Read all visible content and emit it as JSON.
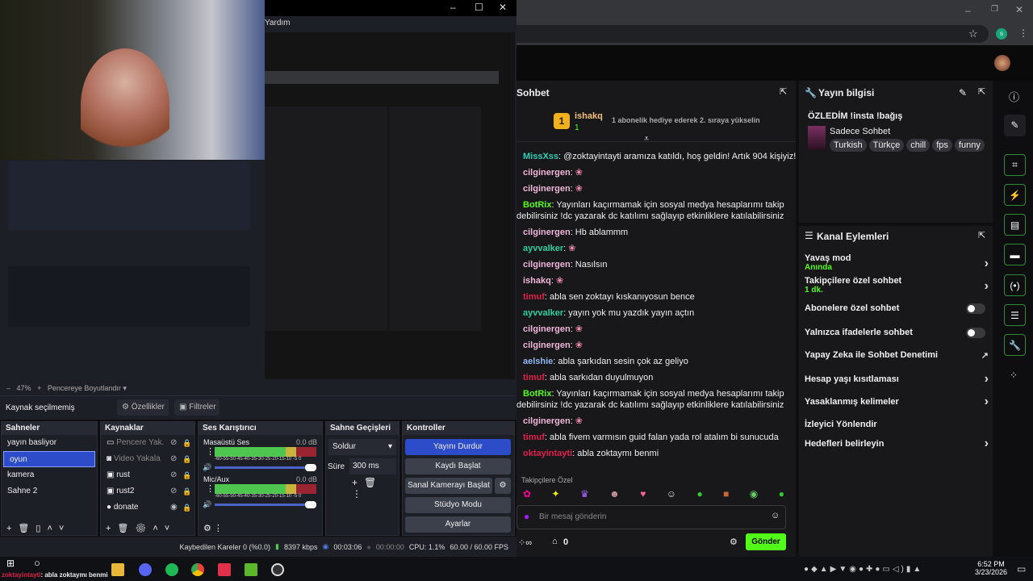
{
  "browser": {
    "profile_initial": "s"
  },
  "chat": {
    "title": "Sohbet",
    "leader": {
      "rank": "1",
      "name": "ishakq",
      "count": "1",
      "gift_hint": "1 abonelik hediye ederek 2. sıraya yükselin"
    },
    "messages": [
      {
        "user": "MissXss",
        "color": "#2ecfb5",
        "text": ": @zoktayintayti aramıza katıldı, hoş geldin! Artık 904 kişiyiz!"
      },
      {
        "user": "cilginergen",
        "color": "#f0b6d8",
        "text": ":"
      },
      {
        "user": "cilginergen",
        "color": "#f0b6d8",
        "text": ":"
      },
      {
        "user": "BotRix",
        "color": "#53fc18",
        "text": ": Yayınları kaçırmamak için sosyal medya hesaplarımı takip",
        "cont": "debilirsiniz !dc yazarak dc katılımı sağlayıp etkinliklere katılabilirsiniz"
      },
      {
        "user": "cilginergen",
        "color": "#f0b6d8",
        "text": ": Hb ablammm"
      },
      {
        "user": "ayvvalker",
        "color": "#2ecf9a",
        "text": ":"
      },
      {
        "user": "cilginergen",
        "color": "#f0b6d8",
        "text": ": Nasılsın"
      },
      {
        "user": "ishakq",
        "color": "#f0b6d8",
        "text": ":"
      },
      {
        "user": "timuf",
        "color": "#e0204a",
        "text": ": abla sen zoktayı kıskanıyosun bence"
      },
      {
        "user": "ayvvalker",
        "color": "#2ecf9a",
        "text": ": yayın yok mu yazdık yayın açtın"
      },
      {
        "user": "cilginergen",
        "color": "#f0b6d8",
        "text": ":"
      },
      {
        "user": "cilginergen",
        "color": "#f0b6d8",
        "text": ":"
      },
      {
        "user": "aelshie",
        "color": "#8fb7f0",
        "text": ": abla şarkıdan sesin çok az geliyo"
      },
      {
        "user": "timuf",
        "color": "#e0204a",
        "text": ": abla sarkıdan duyulmuyon"
      },
      {
        "user": "BotRix",
        "color": "#53fc18",
        "text": ": Yayınları kaçırmamak için sosyal medya hesaplarımı takip",
        "cont": "debilirsiniz !dc yazarak dc katılımı sağlayıp etkinliklere katılabilirsiniz"
      },
      {
        "user": "cilginergen",
        "color": "#f0b6d8",
        "text": ":"
      },
      {
        "user": "timuf",
        "color": "#e0204a",
        "text": ": abla fivem varmısın guid falan yada rol atalım bi sunucuda"
      },
      {
        "user": "oktayintayti",
        "color": "#e0204a",
        "text": ": abla zoktaymı benmi"
      }
    ],
    "followers_only": "Takipçilere Özel",
    "input_placeholder": "Bir mesaj gönderin",
    "points": "0",
    "send_label": "Gönder"
  },
  "stream_info": {
    "title": "Yayın bilgisi",
    "stream_title": "ÖZLEDİM !insta !bağış",
    "category": "Sadece Sohbet",
    "tags": [
      "Turkish",
      "Türkçe",
      "chill",
      "fps",
      "funny"
    ]
  },
  "channel_actions": {
    "title": "Kanal Eylemleri",
    "items": [
      {
        "label": "Yavaş mod",
        "sub": "Anında",
        "type": "chevron"
      },
      {
        "label": "Takipçilere özel sohbet",
        "sub": "1 dk.",
        "type": "chevron"
      },
      {
        "label": "Abonelere özel sohbet",
        "type": "toggle",
        "on": false
      },
      {
        "label": "Yalnızca ifadelerle sohbet",
        "type": "toggle",
        "on": false
      },
      {
        "label": "Yapay Zeka ile Sohbet Denetimi",
        "type": "external"
      },
      {
        "label": "Hesap yaşı kısıtlaması",
        "type": "chevron"
      },
      {
        "label": "Yasaklanmış kelimeler",
        "type": "chevron"
      },
      {
        "label": "İzleyici Yönlendir",
        "type": "none"
      },
      {
        "label": "Hedefleri belirleyin",
        "type": "chevron"
      }
    ]
  },
  "obs": {
    "menu_item": "Yardım",
    "zoom": "47%",
    "fit_label": "Pencereye Boyutlandır",
    "no_source": "Kaynak seçilmemiş",
    "properties": "Özellikler",
    "filters": "Filtreler",
    "scenes_title": "Sahneler",
    "scenes": [
      "yayın basliyor",
      "oyun",
      "kamera",
      "Sahne 2"
    ],
    "selected_scene": "oyun",
    "sources_title": "Kaynaklar",
    "sources": [
      "Pencere Yak.",
      "Video Yakala",
      "rust",
      "rust2",
      "donate"
    ],
    "mixer_title": "Ses Karıştırıcı",
    "mixer": [
      {
        "name": "Masaüstü Ses",
        "db": "0.0 dB"
      },
      {
        "name": "Mic/Aux",
        "db": "0.0 dB"
      }
    ],
    "meter_ticks": "-60-55-50-45-40-35-30-25-20-15-10 -5 0",
    "transitions_title": "Sahne Geçişleri",
    "transition": "Soldur",
    "duration_label": "Süre",
    "duration": "300 ms",
    "controls_title": "Kontroller",
    "controls": [
      "Yayını Durdur",
      "Kaydı Başlat",
      "Sanal Kamerayı Başlat",
      "Stüdyo Modu",
      "Ayarlar"
    ],
    "status": {
      "dropped": "Kaybedilen Kareler 0 (%0.0)",
      "bitrate": "8397 kbps",
      "live_time": "00:03:06",
      "rec_time": "00:00:00",
      "cpu": "CPU: 1.1%",
      "fps": "60.00 / 60.00 FPS"
    }
  },
  "overlay_chat": {
    "user": "zoktayintayti",
    "text": ": abla zoktaymı benmi"
  },
  "taskbar": {
    "time": "6:52 PM",
    "date": "3/23/2026"
  },
  "colors": {
    "kick_green": "#53fc18",
    "obs_blue": "#2c4cc9",
    "panel": "#18181b"
  }
}
